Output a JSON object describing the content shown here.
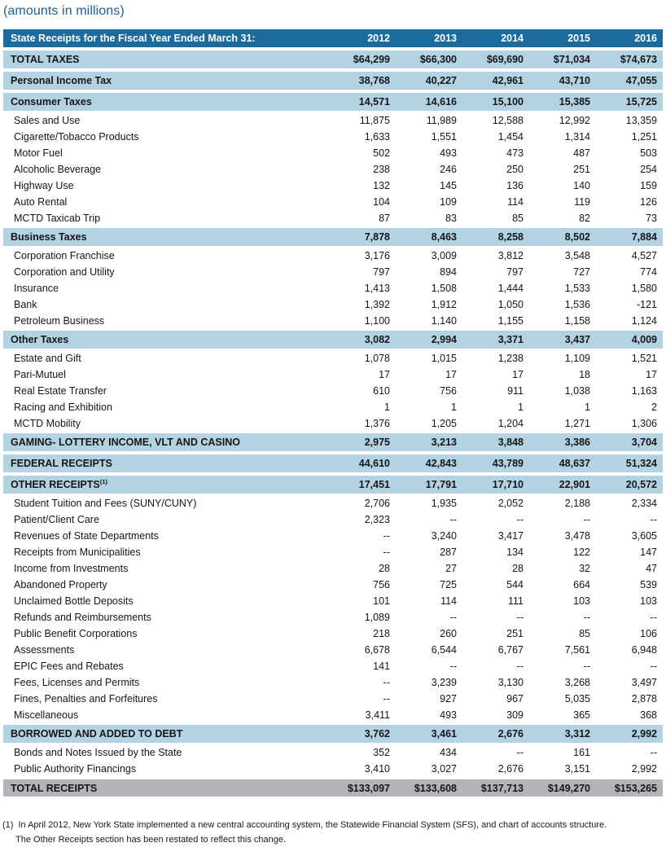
{
  "subtitle": "(amounts in millions)",
  "colors": {
    "header_bar": "#1c6b9e",
    "section_band": "#b3d2e2",
    "total_band": "#b2b4b7",
    "subtitle_text": "#1a5e96"
  },
  "table": {
    "header": {
      "label": "State Receipts for the Fiscal Year Ended March 31:",
      "years": [
        "2012",
        "2013",
        "2014",
        "2015",
        "2016"
      ]
    },
    "rows": [
      {
        "type": "section",
        "label": "TOTAL TAXES",
        "values": [
          "$64,299",
          "$66,300",
          "$69,690",
          "$71,034",
          "$74,673"
        ]
      },
      {
        "type": "section",
        "label": "Personal Income Tax",
        "values": [
          "38,768",
          "40,227",
          "42,961",
          "43,710",
          "47,055"
        ]
      },
      {
        "type": "section",
        "label": "Consumer Taxes",
        "values": [
          "14,571",
          "14,616",
          "15,100",
          "15,385",
          "15,725"
        ]
      },
      {
        "type": "detail",
        "label": "Sales and Use",
        "values": [
          "11,875",
          "11,989",
          "12,588",
          "12,992",
          "13,359"
        ]
      },
      {
        "type": "detail",
        "label": "Cigarette/Tobacco Products",
        "values": [
          "1,633",
          "1,551",
          "1,454",
          "1,314",
          "1,251"
        ]
      },
      {
        "type": "detail",
        "label": "Motor Fuel",
        "values": [
          "502",
          "493",
          "473",
          "487",
          "503"
        ]
      },
      {
        "type": "detail",
        "label": "Alcoholic Beverage",
        "values": [
          "238",
          "246",
          "250",
          "251",
          "254"
        ]
      },
      {
        "type": "detail",
        "label": "Highway Use",
        "values": [
          "132",
          "145",
          "136",
          "140",
          "159"
        ]
      },
      {
        "type": "detail",
        "label": "Auto Rental",
        "values": [
          "104",
          "109",
          "114",
          "119",
          "126"
        ]
      },
      {
        "type": "detail",
        "label": "MCTD Taxicab Trip",
        "values": [
          "87",
          "83",
          "85",
          "82",
          "73"
        ]
      },
      {
        "type": "section",
        "label": "Business Taxes",
        "values": [
          "7,878",
          "8,463",
          "8,258",
          "8,502",
          "7,884"
        ]
      },
      {
        "type": "detail",
        "label": "Corporation Franchise",
        "values": [
          "3,176",
          "3,009",
          "3,812",
          "3,548",
          "4,527"
        ]
      },
      {
        "type": "detail",
        "label": "Corporation and Utility",
        "values": [
          "797",
          "894",
          "797",
          "727",
          "774"
        ]
      },
      {
        "type": "detail",
        "label": "Insurance",
        "values": [
          "1,413",
          "1,508",
          "1,444",
          "1,533",
          "1,580"
        ]
      },
      {
        "type": "detail",
        "label": "Bank",
        "values": [
          "1,392",
          "1,912",
          "1,050",
          "1,536",
          "-121"
        ]
      },
      {
        "type": "detail",
        "label": "Petroleum Business",
        "values": [
          "1,100",
          "1,140",
          "1,155",
          "1,158",
          "1,124"
        ]
      },
      {
        "type": "section",
        "label": "Other Taxes",
        "values": [
          "3,082",
          "2,994",
          "3,371",
          "3,437",
          "4,009"
        ]
      },
      {
        "type": "detail",
        "label": "Estate and Gift",
        "values": [
          "1,078",
          "1,015",
          "1,238",
          "1,109",
          "1,521"
        ]
      },
      {
        "type": "detail",
        "label": "Pari-Mutuel",
        "values": [
          "17",
          "17",
          "17",
          "18",
          "17"
        ]
      },
      {
        "type": "detail",
        "label": "Real Estate Transfer",
        "values": [
          "610",
          "756",
          "911",
          "1,038",
          "1,163"
        ]
      },
      {
        "type": "detail",
        "label": "Racing and Exhibition",
        "values": [
          "1",
          "1",
          "1",
          "1",
          "2"
        ]
      },
      {
        "type": "detail",
        "label": "MCTD Mobility",
        "values": [
          "1,376",
          "1,205",
          "1,204",
          "1,271",
          "1,306"
        ]
      },
      {
        "type": "section",
        "label": "GAMING- LOTTERY INCOME, VLT AND CASINO",
        "values": [
          "2,975",
          "3,213",
          "3,848",
          "3,386",
          "3,704"
        ]
      },
      {
        "type": "section",
        "label": "FEDERAL RECEIPTS",
        "values": [
          "44,610",
          "42,843",
          "43,789",
          "48,637",
          "51,324"
        ]
      },
      {
        "type": "section",
        "label": "OTHER RECEIPTS",
        "sup": "(1)",
        "values": [
          "17,451",
          "17,791",
          "17,710",
          "22,901",
          "20,572"
        ]
      },
      {
        "type": "detail",
        "label": "Student Tuition and Fees (SUNY/CUNY)",
        "values": [
          "2,706",
          "1,935",
          "2,052",
          "2,188",
          "2,334"
        ]
      },
      {
        "type": "detail",
        "label": "Patient/Client Care",
        "values": [
          "2,323",
          "--",
          "--",
          "--",
          "--"
        ]
      },
      {
        "type": "detail",
        "label": "Revenues of State Departments",
        "values": [
          "--",
          "3,240",
          "3,417",
          "3,478",
          "3,605"
        ]
      },
      {
        "type": "detail",
        "label": "Receipts from Municipalities",
        "values": [
          "--",
          "287",
          "134",
          "122",
          "147"
        ]
      },
      {
        "type": "detail",
        "label": "Income from Investments",
        "values": [
          "28",
          "27",
          "28",
          "32",
          "47"
        ]
      },
      {
        "type": "detail",
        "label": "Abandoned Property",
        "values": [
          "756",
          "725",
          "544",
          "664",
          "539"
        ]
      },
      {
        "type": "detail",
        "label": "Unclaimed Bottle Deposits",
        "values": [
          "101",
          "114",
          "111",
          "103",
          "103"
        ]
      },
      {
        "type": "detail",
        "label": "Refunds and Reimbursements",
        "values": [
          "1,089",
          "--",
          "--",
          "--",
          "--"
        ]
      },
      {
        "type": "detail",
        "label": "Public Benefit Corporations",
        "values": [
          "218",
          "260",
          "251",
          "85",
          "106"
        ]
      },
      {
        "type": "detail",
        "label": "Assessments",
        "values": [
          "6,678",
          "6,544",
          "6,767",
          "7,561",
          "6,948"
        ]
      },
      {
        "type": "detail",
        "label": "EPIC Fees and Rebates",
        "values": [
          "141",
          "--",
          "--",
          "--",
          "--"
        ]
      },
      {
        "type": "detail",
        "label": "Fees, Licenses and Permits",
        "values": [
          "--",
          "3,239",
          "3,130",
          "3,268",
          "3,497"
        ]
      },
      {
        "type": "detail",
        "label": "Fines, Penalties and Forfeitures",
        "values": [
          "--",
          "927",
          "967",
          "5,035",
          "2,878"
        ]
      },
      {
        "type": "detail",
        "label": "Miscellaneous",
        "values": [
          "3,411",
          "493",
          "309",
          "365",
          "368"
        ]
      },
      {
        "type": "section",
        "label": "BORROWED AND ADDED TO DEBT",
        "values": [
          "3,762",
          "3,461",
          "2,676",
          "3,312",
          "2,992"
        ]
      },
      {
        "type": "detail",
        "label": "Bonds and Notes Issued by the State",
        "values": [
          "352",
          "434",
          "--",
          "161",
          "--"
        ]
      },
      {
        "type": "detail",
        "label": "Public Authority Financings",
        "values": [
          "3,410",
          "3,027",
          "2,676",
          "3,151",
          "2,992"
        ]
      },
      {
        "type": "total",
        "label": "TOTAL RECEIPTS",
        "values": [
          "$133,097",
          "$133,608",
          "$137,713",
          "$149,270",
          "$153,265"
        ]
      }
    ]
  },
  "footnote": {
    "marker": "(1)",
    "line1": "In April 2012, New York State implemented a new central accounting system, the Statewide Financial System (SFS), and chart of accounts structure.",
    "line2": "The Other Receipts section has been restated to reflect this change."
  }
}
